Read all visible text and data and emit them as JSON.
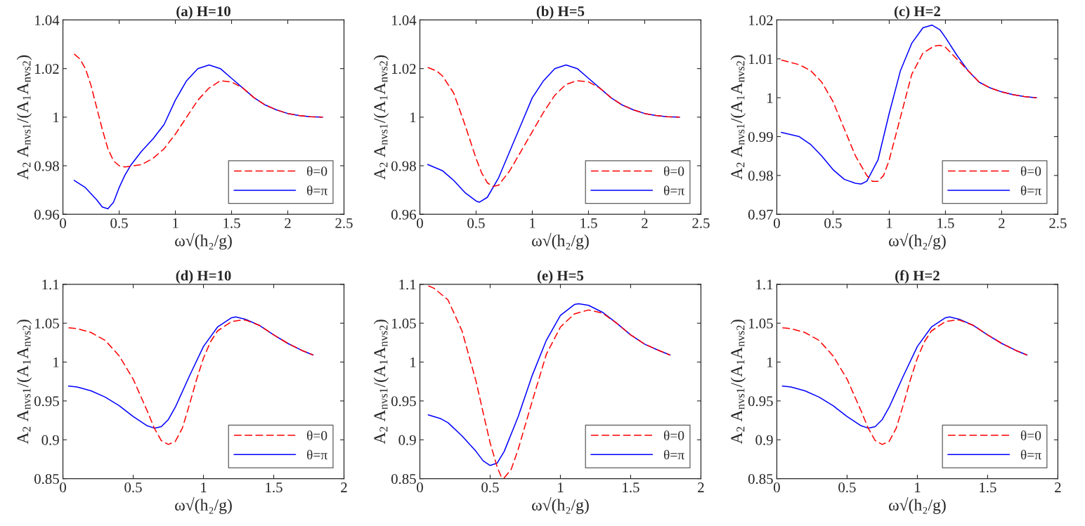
{
  "chart_data": [
    {
      "type": "line",
      "title": "(a) H=10",
      "xlabel": "ω√(h₂/g)",
      "ylabel": "A$_{2}$ A$_{nvs1}$/(A$_{1}$A$_{nvs2}$)",
      "xlim": [
        0,
        2.5
      ],
      "ylim": [
        0.96,
        1.04
      ],
      "xticks": [
        0,
        0.5,
        1,
        1.5,
        2,
        2.5
      ],
      "yticks": [
        0.96,
        0.98,
        1,
        1.02,
        1.04
      ],
      "legend": "bottom right",
      "series": [
        {
          "name": "θ=0",
          "color": "#ff0000",
          "line_style": "dashed",
          "x": [
            0.1,
            0.15,
            0.2,
            0.25,
            0.3,
            0.35,
            0.4,
            0.45,
            0.5,
            0.55,
            0.6,
            0.7,
            0.8,
            0.9,
            1.0,
            1.1,
            1.2,
            1.3,
            1.4,
            1.5,
            1.6,
            1.7,
            1.8,
            1.9,
            2.0,
            2.1,
            2.2,
            2.31
          ],
          "values": [
            1.026,
            1.024,
            1.02,
            1.013,
            1.004,
            0.995,
            0.987,
            0.982,
            0.98,
            0.9795,
            0.9798,
            0.9805,
            0.983,
            0.987,
            0.993,
            1.0,
            1.007,
            1.012,
            1.015,
            1.0145,
            1.012,
            1.008,
            1.005,
            1.003,
            1.0015,
            1.0007,
            1.0002,
            1.0
          ]
        },
        {
          "name": "θ=π",
          "color": "#0000ff",
          "line_style": "solid",
          "x": [
            0.1,
            0.2,
            0.3,
            0.35,
            0.4,
            0.45,
            0.5,
            0.55,
            0.6,
            0.7,
            0.8,
            0.9,
            1.0,
            1.1,
            1.2,
            1.3,
            1.4,
            1.5,
            1.6,
            1.7,
            1.8,
            1.9,
            2.0,
            2.1,
            2.2,
            2.31
          ],
          "values": [
            0.974,
            0.971,
            0.966,
            0.963,
            0.9623,
            0.965,
            0.971,
            0.976,
            0.98,
            0.986,
            0.991,
            0.997,
            1.007,
            1.015,
            1.02,
            1.0215,
            1.02,
            1.016,
            1.012,
            1.008,
            1.005,
            1.003,
            1.0015,
            1.0007,
            1.0002,
            1.0
          ]
        }
      ]
    },
    {
      "type": "line",
      "title": "(b) H=5",
      "xlabel": "ω√(h₂/g)",
      "ylabel": "A$_{2}$ A$_{nvs1}$/(A$_{1}$A$_{nvs2}$)",
      "xlim": [
        0,
        2.5
      ],
      "ylim": [
        0.96,
        1.04
      ],
      "xticks": [
        0,
        0.5,
        1,
        1.5,
        2,
        2.5
      ],
      "yticks": [
        0.96,
        0.98,
        1,
        1.02,
        1.04
      ],
      "legend": "bottom right",
      "series": [
        {
          "name": "θ=0",
          "color": "#ff0000",
          "line_style": "dashed",
          "x": [
            0.07,
            0.15,
            0.2,
            0.3,
            0.4,
            0.5,
            0.55,
            0.6,
            0.65,
            0.7,
            0.8,
            0.9,
            1.0,
            1.1,
            1.2,
            1.3,
            1.4,
            1.5,
            1.6,
            1.7,
            1.8,
            1.9,
            2.0,
            2.1,
            2.2,
            2.31
          ],
          "values": [
            1.0205,
            1.019,
            1.017,
            1.01,
            0.997,
            0.983,
            0.977,
            0.973,
            0.9715,
            0.972,
            0.978,
            0.986,
            0.994,
            1.002,
            1.009,
            1.0135,
            1.015,
            1.0145,
            1.012,
            1.008,
            1.005,
            1.003,
            1.0015,
            1.0007,
            1.0002,
            1.0
          ]
        },
        {
          "name": "θ=π",
          "color": "#0000ff",
          "line_style": "solid",
          "x": [
            0.07,
            0.2,
            0.3,
            0.4,
            0.5,
            0.53,
            0.6,
            0.7,
            0.8,
            0.9,
            1.0,
            1.1,
            1.2,
            1.3,
            1.4,
            1.5,
            1.6,
            1.7,
            1.8,
            1.9,
            2.0,
            2.1,
            2.2,
            2.31
          ],
          "values": [
            0.9805,
            0.978,
            0.974,
            0.969,
            0.9655,
            0.965,
            0.967,
            0.975,
            0.986,
            0.997,
            1.008,
            1.015,
            1.02,
            1.0215,
            1.02,
            1.016,
            1.012,
            1.008,
            1.005,
            1.003,
            1.0015,
            1.0007,
            1.0002,
            1.0
          ]
        }
      ]
    },
    {
      "type": "line",
      "title": "(c) H=2",
      "xlabel": "ω√(h₂/g)",
      "ylabel": "A$_{2}$ A$_{nvs1}$/(A$_{1}$A$_{nvs2}$)",
      "xlim": [
        0,
        2.5
      ],
      "ylim": [
        0.97,
        1.02
      ],
      "xticks": [
        0,
        0.5,
        1,
        1.5,
        2,
        2.5
      ],
      "yticks": [
        0.97,
        0.98,
        0.99,
        1,
        1.01,
        1.02
      ],
      "legend": "bottom right",
      "series": [
        {
          "name": "θ=0",
          "color": "#ff0000",
          "line_style": "dashed",
          "x": [
            0.04,
            0.2,
            0.3,
            0.4,
            0.5,
            0.6,
            0.7,
            0.8,
            0.85,
            0.9,
            0.95,
            1.0,
            1.1,
            1.2,
            1.3,
            1.4,
            1.45,
            1.5,
            1.6,
            1.7,
            1.8,
            1.9,
            2.0,
            2.1,
            2.2,
            2.31
          ],
          "values": [
            1.0097,
            1.0085,
            1.007,
            1.004,
            0.999,
            0.992,
            0.985,
            0.98,
            0.9785,
            0.9785,
            0.98,
            0.984,
            0.995,
            1.006,
            1.0115,
            1.0133,
            1.0135,
            1.013,
            1.01,
            1.007,
            1.004,
            1.0025,
            1.0015,
            1.0008,
            1.0003,
            1.0
          ]
        },
        {
          "name": "θ=π",
          "color": "#0000ff",
          "line_style": "solid",
          "x": [
            0.04,
            0.2,
            0.3,
            0.4,
            0.5,
            0.6,
            0.7,
            0.75,
            0.8,
            0.9,
            1.0,
            1.1,
            1.2,
            1.3,
            1.38,
            1.45,
            1.5,
            1.6,
            1.7,
            1.8,
            1.9,
            2.0,
            2.1,
            2.2,
            2.31
          ],
          "values": [
            0.9911,
            0.99,
            0.988,
            0.985,
            0.9815,
            0.979,
            0.978,
            0.9778,
            0.9785,
            0.984,
            0.996,
            1.007,
            1.014,
            1.018,
            1.0187,
            1.0175,
            1.0155,
            1.011,
            1.007,
            1.004,
            1.0025,
            1.0015,
            1.0008,
            1.0003,
            1.0
          ]
        }
      ]
    },
    {
      "type": "line",
      "title": "(d) H=10",
      "xlabel": "ω√(h₂/g)",
      "ylabel": "A$_{2}$ A$_{nvs1}$/(A$_{1}$A$_{nvs2}$)",
      "xlim": [
        0,
        2
      ],
      "ylim": [
        0.85,
        1.1
      ],
      "xticks": [
        0,
        0.5,
        1,
        1.5,
        2
      ],
      "yticks": [
        0.85,
        0.9,
        0.95,
        1,
        1.05,
        1.1
      ],
      "legend": "bottom right",
      "series": [
        {
          "name": "θ=0",
          "color": "#ff0000",
          "line_style": "dashed",
          "x": [
            0.04,
            0.1,
            0.2,
            0.3,
            0.4,
            0.5,
            0.6,
            0.65,
            0.7,
            0.75,
            0.8,
            0.85,
            0.9,
            0.95,
            1.0,
            1.05,
            1.1,
            1.2,
            1.27,
            1.3,
            1.4,
            1.5,
            1.6,
            1.7,
            1.78
          ],
          "values": [
            1.044,
            1.043,
            1.038,
            1.028,
            1.008,
            0.978,
            0.937,
            0.915,
            0.899,
            0.894,
            0.898,
            0.915,
            0.945,
            0.977,
            1.005,
            1.026,
            1.04,
            1.052,
            1.054,
            1.054,
            1.047,
            1.035,
            1.024,
            1.015,
            1.009
          ]
        },
        {
          "name": "θ=π",
          "color": "#0000ff",
          "line_style": "solid",
          "x": [
            0.04,
            0.1,
            0.2,
            0.3,
            0.4,
            0.5,
            0.6,
            0.65,
            0.7,
            0.75,
            0.8,
            0.9,
            1.0,
            1.1,
            1.2,
            1.23,
            1.3,
            1.4,
            1.5,
            1.6,
            1.7,
            1.78
          ],
          "values": [
            0.969,
            0.968,
            0.963,
            0.955,
            0.944,
            0.93,
            0.918,
            0.915,
            0.917,
            0.926,
            0.942,
            0.982,
            1.02,
            1.045,
            1.057,
            1.058,
            1.055,
            1.047,
            1.035,
            1.024,
            1.015,
            1.009
          ]
        }
      ]
    },
    {
      "type": "line",
      "title": "(e) H=5",
      "xlabel": "ω√(h₂/g)",
      "ylabel": "A$_{2}$ A$_{nvs1}$/(A$_{1}$A$_{nvs2}$)",
      "xlim": [
        0,
        2
      ],
      "ylim": [
        0.85,
        1.1
      ],
      "xticks": [
        0,
        0.5,
        1,
        1.5,
        2
      ],
      "yticks": [
        0.85,
        0.9,
        0.95,
        1,
        1.05,
        1.1
      ],
      "legend": "bottom right",
      "series": [
        {
          "name": "θ=0",
          "color": "#ff0000",
          "line_style": "dashed",
          "x": [
            0.06,
            0.1,
            0.2,
            0.3,
            0.4,
            0.45,
            0.5,
            0.55,
            0.58,
            0.6,
            0.65,
            0.7,
            0.8,
            0.9,
            1.0,
            1.1,
            1.2,
            1.3,
            1.4,
            1.5,
            1.6,
            1.7,
            1.78
          ],
          "values": [
            1.098,
            1.095,
            1.08,
            1.04,
            0.975,
            0.935,
            0.896,
            0.865,
            0.852,
            0.851,
            0.862,
            0.888,
            0.95,
            1.01,
            1.045,
            1.062,
            1.067,
            1.063,
            1.05,
            1.035,
            1.023,
            1.015,
            1.009
          ]
        },
        {
          "name": "θ=π",
          "color": "#0000ff",
          "line_style": "solid",
          "x": [
            0.06,
            0.15,
            0.2,
            0.3,
            0.4,
            0.45,
            0.5,
            0.55,
            0.6,
            0.7,
            0.8,
            0.9,
            1.0,
            1.1,
            1.13,
            1.2,
            1.3,
            1.4,
            1.5,
            1.6,
            1.7,
            1.78
          ],
          "values": [
            0.932,
            0.927,
            0.922,
            0.905,
            0.885,
            0.873,
            0.867,
            0.87,
            0.885,
            0.93,
            0.983,
            1.028,
            1.06,
            1.074,
            1.075,
            1.073,
            1.064,
            1.05,
            1.035,
            1.023,
            1.015,
            1.009
          ]
        }
      ]
    },
    {
      "type": "line",
      "title": "(f) H=2",
      "xlabel": "ω√(h₂/g)",
      "ylabel": "A$_{2}$ A$_{nvs1}$/(A$_{1}$A$_{nvs2}$)",
      "xlim": [
        0,
        2
      ],
      "ylim": [
        0.85,
        1.1
      ],
      "xticks": [
        0,
        0.5,
        1,
        1.5,
        2
      ],
      "yticks": [
        0.85,
        0.9,
        0.95,
        1,
        1.05,
        1.1
      ],
      "legend": "bottom right",
      "series": [
        {
          "name": "θ=0",
          "color": "#ff0000",
          "line_style": "dashed",
          "x": [
            0.04,
            0.1,
            0.2,
            0.3,
            0.4,
            0.5,
            0.6,
            0.65,
            0.7,
            0.75,
            0.8,
            0.85,
            0.9,
            0.95,
            1.0,
            1.05,
            1.1,
            1.2,
            1.27,
            1.3,
            1.4,
            1.5,
            1.6,
            1.7,
            1.78
          ],
          "values": [
            1.044,
            1.043,
            1.038,
            1.028,
            1.008,
            0.978,
            0.937,
            0.915,
            0.899,
            0.894,
            0.898,
            0.915,
            0.945,
            0.977,
            1.005,
            1.026,
            1.04,
            1.052,
            1.054,
            1.054,
            1.047,
            1.035,
            1.024,
            1.015,
            1.009
          ]
        },
        {
          "name": "θ=π",
          "color": "#0000ff",
          "line_style": "solid",
          "x": [
            0.04,
            0.1,
            0.2,
            0.3,
            0.4,
            0.5,
            0.6,
            0.65,
            0.7,
            0.75,
            0.8,
            0.9,
            1.0,
            1.1,
            1.2,
            1.23,
            1.3,
            1.4,
            1.5,
            1.6,
            1.7,
            1.78
          ],
          "values": [
            0.969,
            0.968,
            0.963,
            0.955,
            0.944,
            0.93,
            0.918,
            0.915,
            0.917,
            0.926,
            0.942,
            0.982,
            1.02,
            1.045,
            1.057,
            1.058,
            1.055,
            1.047,
            1.035,
            1.024,
            1.015,
            1.009
          ]
        }
      ]
    }
  ]
}
